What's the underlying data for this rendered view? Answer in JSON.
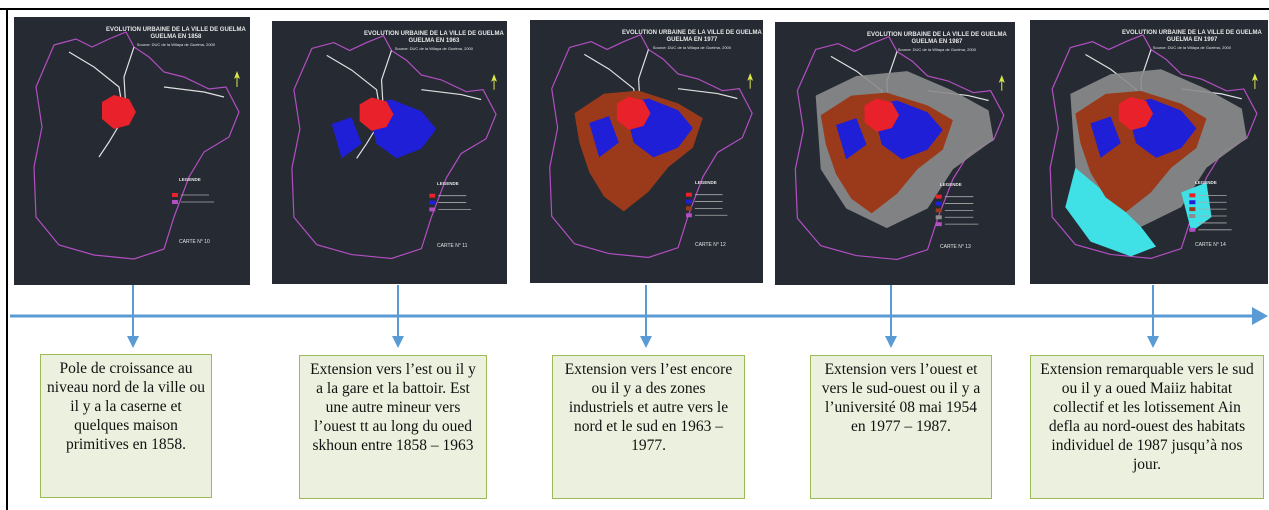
{
  "colors": {
    "arrow": "#5b9bd5",
    "box_fill": "#ebf1de",
    "box_border": "#9bbb59",
    "map_bg": "#252a33",
    "boundary": "#b34fc2",
    "core_1858": "#e8212b",
    "ext_1963": "#1f1fd8",
    "ext_1977": "#9b3a1a",
    "ext_1987": "#8c8c8c",
    "ext_1997": "#3fe0e6"
  },
  "maps": [
    {
      "title": "EVOLUTION URBAINE DE LA VILLE DE GUELMA",
      "year_line": "GUELMA EN 1858",
      "source": "Source: DUC de la Wilaya de Guelma, 2000",
      "legend_title": "LEGENDE",
      "carte": "CARTE N° 10",
      "stage": 1
    },
    {
      "title": "EVOLUTION URBAINE DE LA VILLE DE GUELMA",
      "year_line": "GUELMA EN 1963",
      "source": "Source: DUC de la Wilaya de Guelma, 2000",
      "legend_title": "LEGENDE",
      "carte": "CARTE N° 11",
      "stage": 2
    },
    {
      "title": "EVOLUTION URBAINE DE LA VILLE DE GUELMA",
      "year_line": "GUELMA EN 1977",
      "source": "Source: DUC de la Wilaya de Guelma, 2000",
      "legend_title": "LEGENDE",
      "carte": "CARTE N° 12",
      "stage": 3
    },
    {
      "title": "EVOLUTION URBAINE DE LA VILLE DE GUELMA",
      "year_line": "GUELMA EN 1987",
      "source": "Source: DUC de la Wilaya de Guelma, 2000",
      "legend_title": "LEGENDE",
      "carte": "CARTE N° 13",
      "stage": 4
    },
    {
      "title": "EVOLUTION URBAINE DE LA VILLE DE GUELMA",
      "year_line": "GUELMA EN 1997",
      "source": "Source: DUC de la Wilaya de Guelma, 2000",
      "legend_title": "LEGENDE",
      "carte": "CARTE N° 14",
      "stage": 5
    }
  ],
  "captions": [
    "Pole de croissance au niveau nord de la ville ou il y a la caserne et quelques maison primitives en 1858.",
    "Extension vers l’est ou il y a la gare et la battoir. Est une autre mineur vers l’ouest tt au long du oued skhoun entre 1858 – 1963",
    "Extension vers l’est encore ou il y a des zones industriels et autre vers le nord et le sud en 1963 – 1977.",
    "Extension vers l’ouest et vers le sud-ouest ou il y a l’université 08 mai 1954 en 1977 – 1987.",
    "Extension remarquable vers le sud ou il y a oued Maiiz habitat collectif et les lotissement Ain defla au nord-ouest des habitats individuel de 1987 jusqu’à nos jour."
  ]
}
